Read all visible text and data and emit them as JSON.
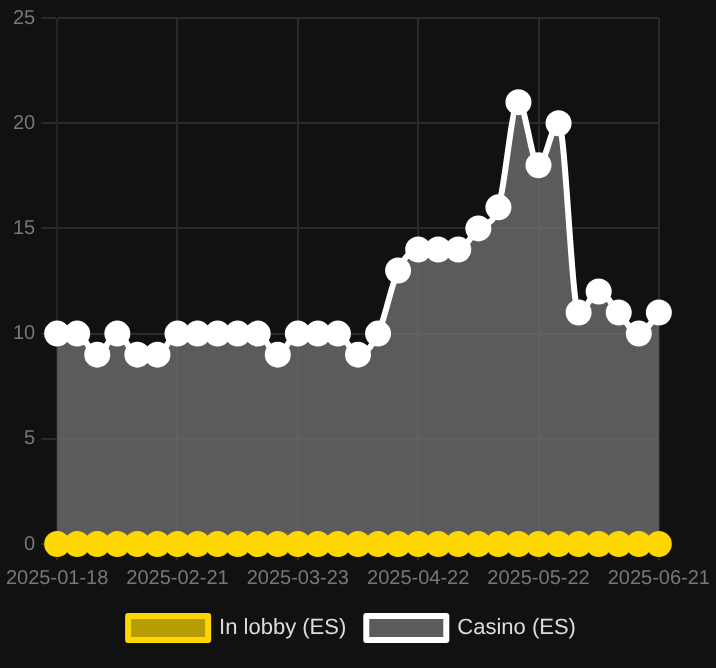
{
  "chart_data": {
    "type": "line",
    "categories": [
      "2025-01-18",
      null,
      null,
      null,
      null,
      null,
      "2025-02-21",
      null,
      null,
      null,
      null,
      null,
      "2025-03-23",
      null,
      null,
      null,
      null,
      null,
      "2025-04-22",
      null,
      null,
      null,
      null,
      null,
      "2025-05-22",
      null,
      null,
      null,
      null,
      null,
      "2025-06-21"
    ],
    "series": [
      {
        "name": "In lobby (ES)",
        "type": "line",
        "color": "#ffd700",
        "values": [
          0,
          0,
          0,
          0,
          0,
          0,
          0,
          0,
          0,
          0,
          0,
          0,
          0,
          0,
          0,
          0,
          0,
          0,
          0,
          0,
          0,
          0,
          0,
          0,
          0,
          0,
          0,
          0,
          0,
          0,
          0
        ]
      },
      {
        "name": "Casino (ES)",
        "type": "area",
        "color": "#ffffff",
        "values": [
          10,
          10,
          9,
          10,
          9,
          9,
          10,
          10,
          10,
          10,
          10,
          9,
          10,
          10,
          10,
          9,
          10,
          13,
          14,
          14,
          14,
          15,
          16,
          21,
          18,
          20,
          11,
          12,
          11,
          10,
          11
        ]
      }
    ],
    "ylim": [
      0,
      25
    ],
    "yticks": [
      0,
      5,
      10,
      15,
      20,
      25
    ],
    "grid": true,
    "legend": "bottom",
    "marker": "circle"
  }
}
